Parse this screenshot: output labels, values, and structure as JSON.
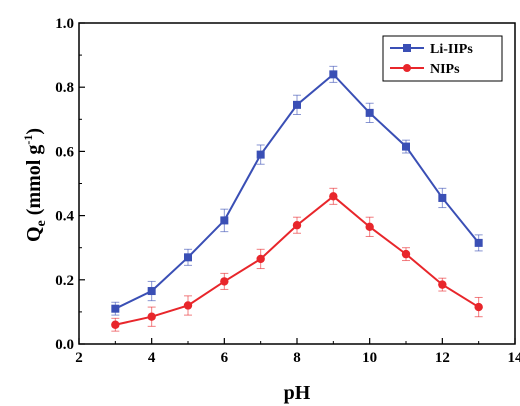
{
  "chart_data": {
    "type": "line",
    "xlabel": "pH",
    "ylabel": {
      "main": "Q",
      "sub": "e",
      "unit": " (mmol g",
      "sup": "-1",
      "close": ")"
    },
    "xlim": [
      2,
      14
    ],
    "ylim": [
      0,
      1.0
    ],
    "xticks": [
      "2",
      "4",
      "6",
      "8",
      "10",
      "12",
      "14"
    ],
    "yticks": [
      "0.0",
      "0.2",
      "0.4",
      "0.6",
      "0.8",
      "1.0"
    ],
    "grid": false,
    "legend_position": "top-right",
    "x": [
      3,
      4,
      5,
      6,
      7,
      8,
      9,
      10,
      11,
      12,
      13
    ],
    "series": [
      {
        "name": "Li-IIPs",
        "color": "#3a4fb5",
        "marker": "square",
        "values": [
          0.11,
          0.165,
          0.27,
          0.385,
          0.59,
          0.745,
          0.84,
          0.72,
          0.615,
          0.455,
          0.315
        ],
        "errors": [
          0.02,
          0.03,
          0.025,
          0.035,
          0.03,
          0.03,
          0.025,
          0.03,
          0.02,
          0.03,
          0.025
        ]
      },
      {
        "name": "NIPs",
        "color": "#e8262b",
        "marker": "circle",
        "values": [
          0.06,
          0.085,
          0.12,
          0.195,
          0.265,
          0.37,
          0.46,
          0.365,
          0.28,
          0.185,
          0.115
        ],
        "errors": [
          0.02,
          0.03,
          0.03,
          0.025,
          0.03,
          0.025,
          0.025,
          0.03,
          0.02,
          0.02,
          0.03
        ]
      }
    ]
  }
}
